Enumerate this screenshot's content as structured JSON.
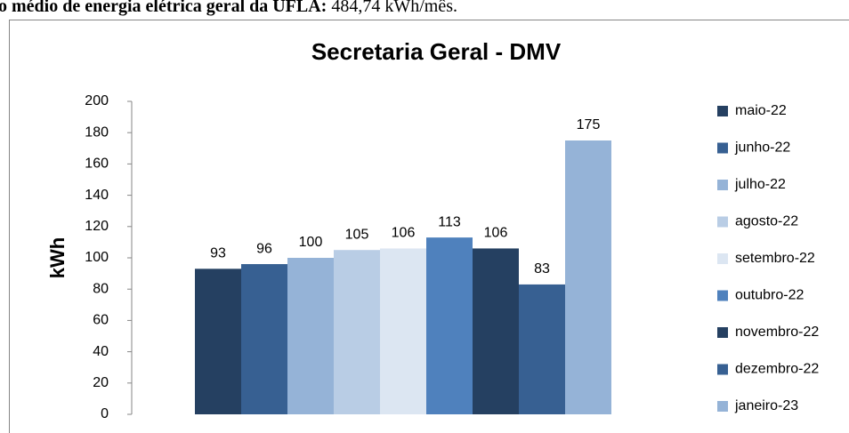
{
  "header": {
    "bold": "o médio de energia elétrica geral da UFLA:",
    "rest": "484,74 kWh/mês."
  },
  "chart_data": {
    "type": "bar",
    "title": "Secretaria Geral - DMV",
    "y_label": "kWh",
    "categories": [
      "maio-22",
      "junho-22",
      "julho-22",
      "agosto-22",
      "setembro-22",
      "outubro-22",
      "novembro-22",
      "dezembro-22",
      "janeiro-23"
    ],
    "values": [
      93,
      96,
      100,
      105,
      106,
      113,
      106,
      83,
      175
    ],
    "colors": [
      "#254061",
      "#376092",
      "#95b3d7",
      "#b9cde5",
      "#dce6f2",
      "#4f81bd",
      "#254061",
      "#376092",
      "#95b3d7"
    ],
    "ylim": [
      0,
      200
    ],
    "yticks": [
      0,
      20,
      40,
      60,
      80,
      100,
      120,
      140,
      160,
      180,
      200
    ],
    "grid": false,
    "legend": "right"
  }
}
